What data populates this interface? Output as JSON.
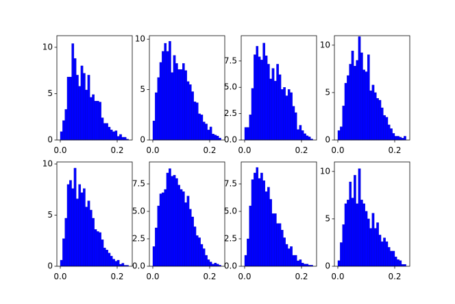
{
  "chart_data": [
    {
      "type": "histogram",
      "color": "#0000ff",
      "xlim": [
        -0.012,
        0.253
      ],
      "ylim": [
        0,
        11.25
      ],
      "xticks": [
        {
          "value": 0,
          "label": "0.0"
        },
        {
          "value": 0.2,
          "label": "0.2"
        }
      ],
      "yticks": [
        0,
        5,
        10
      ],
      "bins": [
        0,
        0.008,
        0.016,
        0.024,
        0.032,
        0.04,
        0.048,
        0.056,
        0.064,
        0.072,
        0.08,
        0.088,
        0.096,
        0.104,
        0.112,
        0.12,
        0.128,
        0.136,
        0.144,
        0.152,
        0.16,
        0.168,
        0.176,
        0.184,
        0.192,
        0.2,
        0.208,
        0.216,
        0.224,
        0.232,
        0.24
      ],
      "values": [
        0.9,
        2.1,
        3.3,
        6.8,
        6.8,
        10.4,
        8.8,
        7.0,
        5.8,
        8.0,
        7.2,
        5.4,
        7.0,
        4.6,
        4.9,
        4.2,
        4.2,
        4.1,
        2.4,
        1.8,
        1.8,
        1.4,
        1.1,
        0.9,
        1.0,
        0.4,
        0.6,
        0.3,
        0.3,
        0.1
      ]
    },
    {
      "type": "histogram",
      "color": "#0000ff",
      "xlim": [
        -0.012,
        0.253
      ],
      "ylim": [
        0,
        10.35
      ],
      "xticks": [
        {
          "value": 0,
          "label": "0.0"
        },
        {
          "value": 0.2,
          "label": "0.2"
        }
      ],
      "yticks": [
        0,
        5,
        10
      ],
      "bins": [
        0,
        0.008,
        0.016,
        0.024,
        0.032,
        0.04,
        0.048,
        0.056,
        0.064,
        0.072,
        0.08,
        0.088,
        0.096,
        0.104,
        0.112,
        0.12,
        0.128,
        0.136,
        0.144,
        0.152,
        0.16,
        0.168,
        0.176,
        0.184,
        0.192,
        0.2,
        0.208,
        0.216,
        0.224,
        0.232,
        0.24
      ],
      "values": [
        1.9,
        4.7,
        6.2,
        7.7,
        8.8,
        9.6,
        8.8,
        9.8,
        6.7,
        8.4,
        7.6,
        7.0,
        7.0,
        7.6,
        6.9,
        5.8,
        5.5,
        4.8,
        3.8,
        3.7,
        2.6,
        2.5,
        1.8,
        1.6,
        1.0,
        1.3,
        0.6,
        0.5,
        0.4,
        0.2
      ]
    },
    {
      "type": "histogram",
      "color": "#0000ff",
      "xlim": [
        -0.012,
        0.253
      ],
      "ylim": [
        0,
        9.9
      ],
      "xticks": [
        {
          "value": 0,
          "label": "0.0"
        },
        {
          "value": 0.2,
          "label": "0.2"
        }
      ],
      "yticks": [
        {
          "value": 0,
          "label": "0.0"
        },
        2.5,
        {
          "value": 5,
          "label": "5.0"
        },
        7.5
      ],
      "bins": [
        0,
        0.008,
        0.016,
        0.024,
        0.032,
        0.04,
        0.048,
        0.056,
        0.064,
        0.072,
        0.08,
        0.088,
        0.096,
        0.104,
        0.112,
        0.12,
        0.128,
        0.136,
        0.144,
        0.152,
        0.16,
        0.168,
        0.176,
        0.184,
        0.192,
        0.2,
        0.208,
        0.216,
        0.224,
        0.232,
        0.24
      ],
      "values": [
        1.2,
        1.2,
        2.4,
        4.9,
        8.1,
        8.9,
        7.9,
        7.6,
        9.2,
        8.0,
        7.2,
        5.8,
        6.8,
        5.6,
        7.2,
        6.2,
        4.8,
        5.0,
        4.2,
        4.8,
        4.5,
        3.2,
        2.6,
        1.0,
        1.4,
        0.9,
        0.6,
        0.4,
        0.3,
        0.1
      ]
    },
    {
      "type": "histogram",
      "color": "#0000ff",
      "xlim": [
        -0.012,
        0.253
      ],
      "ylim": [
        0,
        11
      ],
      "xticks": [
        {
          "value": 0,
          "label": "0.0"
        },
        {
          "value": 0.2,
          "label": "0.2"
        }
      ],
      "yticks": [
        0,
        5,
        10
      ],
      "bins": [
        0,
        0.008,
        0.016,
        0.024,
        0.032,
        0.04,
        0.048,
        0.056,
        0.064,
        0.072,
        0.08,
        0.088,
        0.096,
        0.104,
        0.112,
        0.12,
        0.128,
        0.136,
        0.144,
        0.152,
        0.16,
        0.168,
        0.176,
        0.184,
        0.192,
        0.2,
        0.208,
        0.216,
        0.224,
        0.232,
        0.24
      ],
      "values": [
        1.0,
        1.4,
        3.6,
        6.0,
        6.8,
        8.0,
        9.4,
        7.8,
        8.4,
        10.9,
        9.2,
        7.4,
        7.2,
        9.0,
        5.2,
        5.8,
        5.0,
        4.4,
        4.2,
        3.4,
        2.6,
        2.4,
        1.6,
        1.2,
        0.7,
        0.4,
        0.4,
        0.3,
        0.2,
        0.4
      ]
    },
    {
      "type": "histogram",
      "color": "#0000ff",
      "xlim": [
        -0.012,
        0.253
      ],
      "ylim": [
        0,
        10.2
      ],
      "xticks": [
        {
          "value": 0,
          "label": "0.0"
        },
        {
          "value": 0.2,
          "label": "0.2"
        }
      ],
      "yticks": [
        0,
        5,
        10
      ],
      "bins": [
        0,
        0.008,
        0.016,
        0.024,
        0.032,
        0.04,
        0.048,
        0.056,
        0.064,
        0.072,
        0.08,
        0.088,
        0.096,
        0.104,
        0.112,
        0.12,
        0.128,
        0.136,
        0.144,
        0.152,
        0.16,
        0.168,
        0.176,
        0.184,
        0.192,
        0.2,
        0.208,
        0.216,
        0.224,
        0.232,
        0.24
      ],
      "values": [
        0.6,
        2.7,
        4.7,
        8.0,
        8.4,
        7.6,
        9.6,
        6.6,
        8.0,
        7.2,
        7.6,
        5.8,
        6.4,
        5.5,
        4.7,
        3.6,
        3.4,
        3.3,
        2.6,
        1.8,
        1.6,
        1.3,
        1.0,
        0.7,
        0.5,
        0.6,
        0.2,
        0.3,
        0.1,
        0.1
      ]
    },
    {
      "type": "histogram",
      "color": "#0000ff",
      "xlim": [
        -0.012,
        0.253
      ],
      "ylim": [
        0,
        9.5
      ],
      "xticks": [
        {
          "value": 0,
          "label": "0.0"
        },
        {
          "value": 0.2,
          "label": "0.2"
        }
      ],
      "yticks": [
        {
          "value": 0,
          "label": "0.0"
        },
        2.5,
        {
          "value": 5,
          "label": "5.0"
        },
        7.5
      ],
      "bins": [
        0,
        0.008,
        0.016,
        0.024,
        0.032,
        0.04,
        0.048,
        0.056,
        0.064,
        0.072,
        0.08,
        0.088,
        0.096,
        0.104,
        0.112,
        0.12,
        0.128,
        0.136,
        0.144,
        0.152,
        0.16,
        0.168,
        0.176,
        0.184,
        0.192,
        0.2,
        0.208,
        0.216,
        0.224,
        0.232,
        0.24
      ],
      "values": [
        1.8,
        3.5,
        5.5,
        6.6,
        6.7,
        7.0,
        8.5,
        8.9,
        8.2,
        8.3,
        8.0,
        7.4,
        7.0,
        6.8,
        5.8,
        6.4,
        5.2,
        4.5,
        3.6,
        2.8,
        2.6,
        2.0,
        1.6,
        1.0,
        0.6,
        0.4,
        0.2,
        0.3,
        0.2,
        0.1
      ]
    },
    {
      "type": "histogram",
      "color": "#0000ff",
      "xlim": [
        -0.012,
        0.253
      ],
      "ylim": [
        0,
        9.5
      ],
      "xticks": [
        {
          "value": 0,
          "label": "0.0"
        },
        {
          "value": 0.2,
          "label": "0.2"
        }
      ],
      "yticks": [
        {
          "value": 0,
          "label": "0.0"
        },
        2.5,
        {
          "value": 5,
          "label": "5.0"
        },
        7.5
      ],
      "bins": [
        0,
        0.008,
        0.016,
        0.024,
        0.032,
        0.04,
        0.048,
        0.056,
        0.064,
        0.072,
        0.08,
        0.088,
        0.096,
        0.104,
        0.112,
        0.12,
        0.128,
        0.136,
        0.144,
        0.152,
        0.16,
        0.168,
        0.176,
        0.184,
        0.192,
        0.2,
        0.208,
        0.216,
        0.224,
        0.232,
        0.24
      ],
      "values": [
        1.0,
        2.5,
        5.5,
        7.9,
        8.5,
        9.0,
        8.0,
        8.5,
        7.8,
        6.8,
        7.2,
        6.1,
        4.8,
        4.8,
        3.9,
        3.9,
        3.3,
        2.6,
        2.0,
        1.6,
        1.8,
        1.0,
        1.0,
        0.5,
        0.6,
        0.3,
        0.2,
        0.2,
        0.1,
        0.1
      ]
    },
    {
      "type": "histogram",
      "color": "#0000ff",
      "xlim": [
        -0.012,
        0.253
      ],
      "ylim": [
        0,
        11
      ],
      "xticks": [
        {
          "value": 0,
          "label": "0.0"
        },
        {
          "value": 0.2,
          "label": "0.2"
        }
      ],
      "yticks": [
        0,
        5,
        10
      ],
      "bins": [
        0,
        0.008,
        0.016,
        0.024,
        0.032,
        0.04,
        0.048,
        0.056,
        0.064,
        0.072,
        0.08,
        0.088,
        0.096,
        0.104,
        0.112,
        0.12,
        0.128,
        0.136,
        0.144,
        0.152,
        0.16,
        0.168,
        0.176,
        0.184,
        0.192,
        0.2,
        0.208,
        0.216,
        0.224,
        0.232,
        0.24
      ],
      "values": [
        0.6,
        2.5,
        4.4,
        6.6,
        7.0,
        8.9,
        7.2,
        9.6,
        6.6,
        10.3,
        7.0,
        6.6,
        5.8,
        5.0,
        4.0,
        5.6,
        4.0,
        4.6,
        3.3,
        2.6,
        3.0,
        2.6,
        2.0,
        1.6,
        1.6,
        1.0,
        0.7,
        0.6,
        0.2,
        0.2
      ]
    }
  ]
}
